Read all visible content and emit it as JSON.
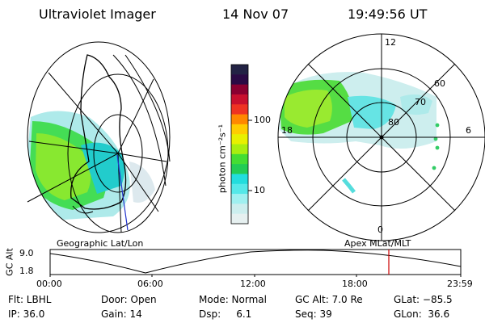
{
  "header": {
    "title": "Ultraviolet Imager",
    "date": "14 Nov 07",
    "time": "19:49:56 UT"
  },
  "colorbar": {
    "unit_label": "photon cm⁻²s⁻¹",
    "ticks": [
      "100",
      "10"
    ],
    "colors": [
      "#222244",
      "#2a0a44",
      "#8a0030",
      "#c8102e",
      "#ee3322",
      "#ff8800",
      "#ffcc00",
      "#e8f000",
      "#a8ee10",
      "#44dd33",
      "#22cc55",
      "#22dddd",
      "#55e8e8",
      "#9ff0f0",
      "#cceeee",
      "#e6f0f0"
    ]
  },
  "polar_labels": {
    "mlt_12": "12",
    "mlt_18": "18",
    "mlt_6": "6",
    "mlt_0": "0",
    "lat_60": "60",
    "lat_70": "70",
    "lat_80": "80"
  },
  "map_labels": {
    "left": "Geographic Lat/Lon",
    "right": "Apex  MLat/MLT"
  },
  "timeline": {
    "y_label": "GC Alt",
    "y_ticks": [
      "9.0",
      "1.8"
    ],
    "x_ticks": [
      "00:00",
      "06:00",
      "12:00",
      "18:00",
      "23:59"
    ],
    "marker_color": "#cc0000"
  },
  "info": {
    "row1": [
      "Flt: LBHL",
      "Door: Open",
      "Mode: Normal",
      "GC Alt: 7.0 Re",
      "GLat: −85.5"
    ],
    "row2": [
      "IP: 36.0",
      "Gain: 14",
      "Dsp:     6.1",
      "Seq: 39",
      "GLon:  36.6"
    ]
  }
}
